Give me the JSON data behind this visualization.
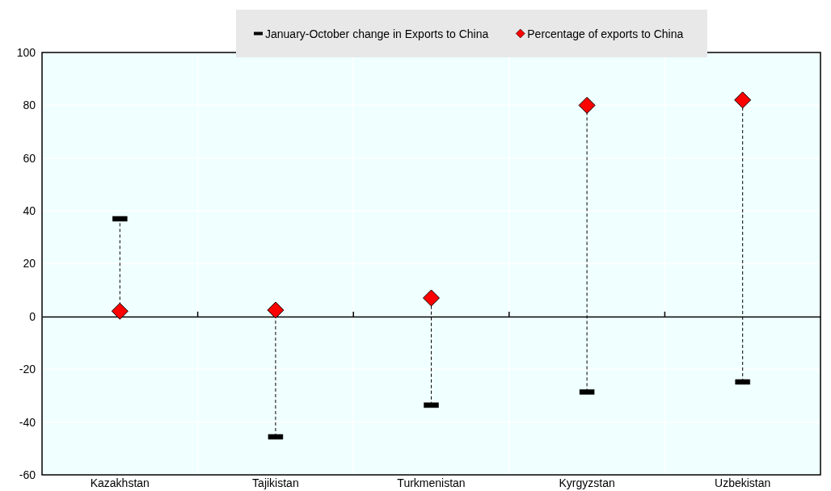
{
  "chart_data": {
    "type": "scatter",
    "categories": [
      "Kazakhstan",
      "Tajikistan",
      "Turkmenistan",
      "Kyrgyzstan",
      "Uzbekistan"
    ],
    "series": [
      {
        "name": "January-October change in Exports to China",
        "color": "#000000",
        "values": [
          37,
          -45.6,
          -33.6,
          -28.6,
          -24.8
        ]
      },
      {
        "name": "Percentage of exports to China",
        "color": "#ff0000",
        "marker": "diamond",
        "values": [
          2,
          2.4,
          7,
          80,
          82
        ]
      }
    ],
    "ylim": [
      -60,
      100
    ],
    "yticks": [
      -60,
      -40,
      -20,
      0,
      20,
      40,
      60,
      80,
      100
    ],
    "grid": true,
    "legend": "top"
  }
}
